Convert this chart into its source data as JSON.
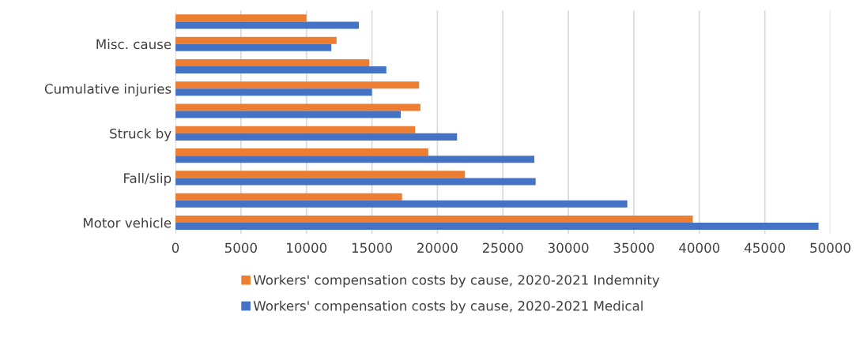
{
  "chart_data": {
    "type": "bar",
    "orientation": "horizontal",
    "categories": [
      null,
      "Misc. cause",
      null,
      "Cumulative injuries",
      null,
      "Struck by",
      null,
      "Fall/slip",
      null,
      "Motor vehicle"
    ],
    "series": [
      {
        "name": "Workers' compensation costs by cause, 2020-2021 Indemnity",
        "color": "#ed7d31",
        "values": [
          10000,
          12300,
          14800,
          18600,
          18700,
          18300,
          19300,
          22100,
          17300,
          39500
        ]
      },
      {
        "name": "Workers' compensation costs by cause, 2020-2021 Medical",
        "color": "#4472c4",
        "values": [
          14000,
          11900,
          16100,
          15000,
          17200,
          21500,
          27400,
          27500,
          34500,
          49100
        ]
      }
    ],
    "xlim": [
      0,
      50000
    ],
    "xticks": [
      0,
      5000,
      10000,
      15000,
      20000,
      25000,
      30000,
      35000,
      40000,
      45000,
      50000
    ],
    "grid": "x",
    "legend": "bottom"
  }
}
